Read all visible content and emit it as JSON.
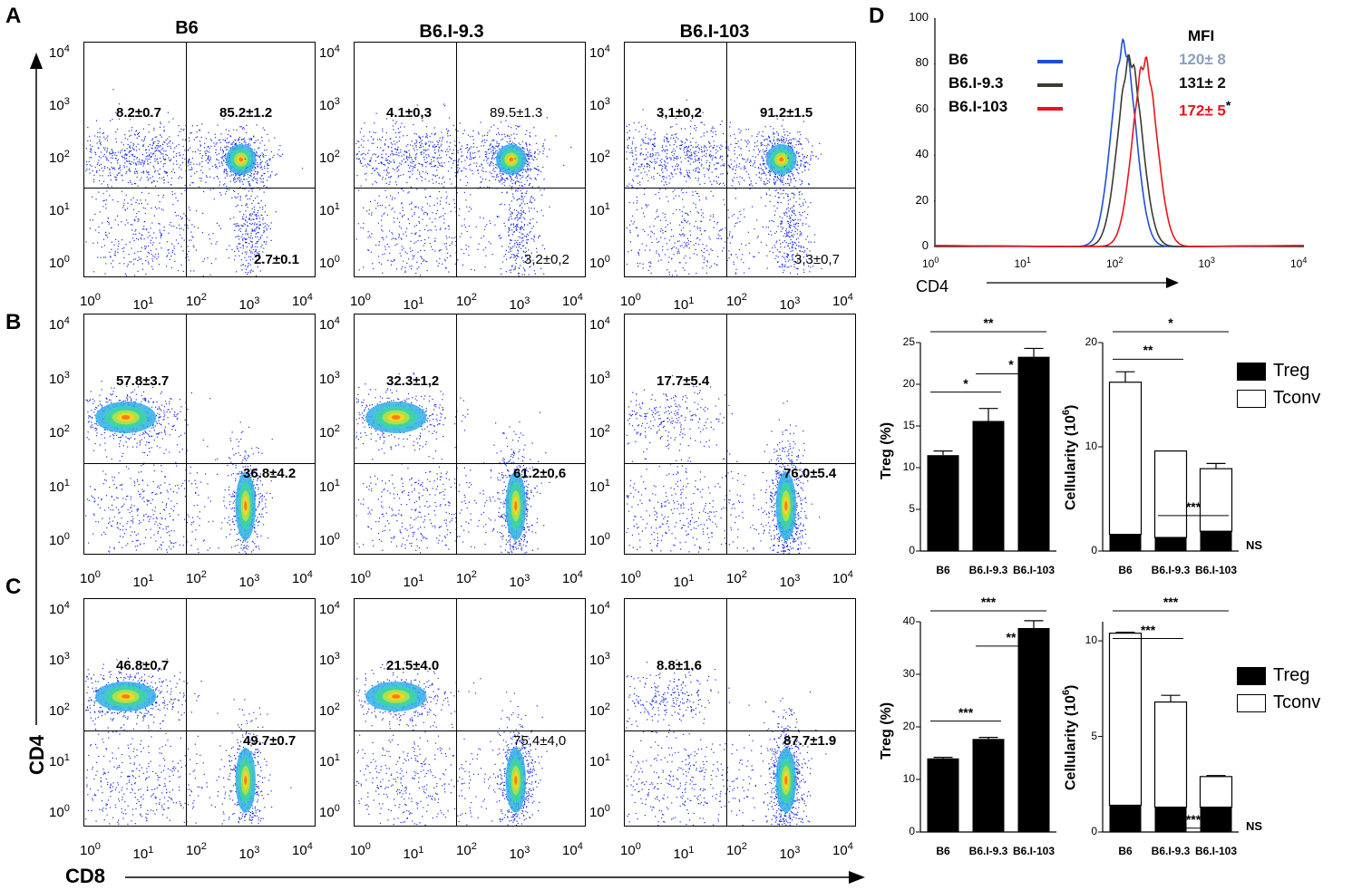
{
  "panels": {
    "A": "A",
    "B": "B",
    "C": "C",
    "D": "D"
  },
  "columns": [
    "B6",
    "B6.I-9.3",
    "B6.I-103"
  ],
  "axes": {
    "x": "CD8",
    "y": "CD4",
    "hist_x": "CD4"
  },
  "ticks": {
    "e0": "0",
    "e1": "1",
    "e2": "2",
    "e3": "3",
    "e4": "4",
    "base": "10"
  },
  "rows": {
    "A": [
      {
        "ul": "8.2±0.7",
        "ur": "85.2±1.2",
        "lr": "2.7±0.1"
      },
      {
        "ul": "4.1±0,3",
        "ur": "89.5±1.3",
        "lr": "3,2±0,2"
      },
      {
        "ul": "3,1±0,2",
        "ur": "91.2±1.5",
        "lr": "3,3±0,7"
      }
    ],
    "B": [
      {
        "ul": "57.8±3.7",
        "lr": "36.8±4.2"
      },
      {
        "ul": "32.3±1,2",
        "lr": "61.2±0.6"
      },
      {
        "ul": "17.7±5.4",
        "lr": "76.0±5.4"
      }
    ],
    "C": [
      {
        "ul": "46.8±0.7",
        "lr": "49.7±0.7"
      },
      {
        "ul": "21.5±4.0",
        "lr": "75,4±4,0"
      },
      {
        "ul": "8.8±1.6",
        "lr": "87.7±1.9"
      }
    ]
  },
  "chart_data": [
    {
      "type": "line",
      "title": "MFI",
      "xlabel": "CD4",
      "ylim": [
        0,
        100
      ],
      "yticks": [
        "0",
        "20",
        "40",
        "60",
        "80",
        "100"
      ],
      "series": [
        {
          "name": "B6",
          "mfi": "120± 8",
          "color": "#1f4fd8",
          "peak_log": 2.05,
          "peak": 88
        },
        {
          "name": "B6.I-9.3",
          "mfi": "131± 2",
          "color": "#3a3a30",
          "peak_log": 2.12,
          "peak": 82
        },
        {
          "name": "B6.I-103",
          "mfi": "172± 5",
          "mfi_mark": "*",
          "color": "#e8151b",
          "peak_log": 2.28,
          "peak": 81
        }
      ],
      "mfi_colors": [
        "#8a9fc0",
        "#111111",
        "#e8151b"
      ]
    },
    {
      "type": "bar",
      "ylabel": "Treg (%)",
      "ylim": [
        0,
        25
      ],
      "yticks": [
        "0",
        "5",
        "10",
        "15",
        "20",
        "25"
      ],
      "categories": [
        "B6",
        "B6.I-9.3",
        "B6.I-103"
      ],
      "values": [
        11.5,
        15.6,
        23.3
      ],
      "errors": [
        0.5,
        1.5,
        1.0
      ],
      "annotations": [
        {
          "from": 0,
          "to": 1,
          "label": "*"
        },
        {
          "from": 1,
          "to": 2,
          "label": "*"
        },
        {
          "from": 0,
          "to": 2,
          "label": "**"
        }
      ]
    },
    {
      "type": "bar",
      "ylabel": "Cellularity (10",
      "ylabel_sup": "6",
      "ylabel_end": ")",
      "ylim": [
        0,
        20
      ],
      "yticks": [
        "0",
        "10",
        "20"
      ],
      "categories": [
        "B6",
        "B6.I-9.3",
        "B6.I-103"
      ],
      "series": [
        {
          "name": "Treg",
          "values": [
            1.6,
            1.3,
            1.9
          ]
        },
        {
          "name": "Tconv",
          "values": [
            14.6,
            8.3,
            6.0
          ]
        }
      ],
      "errors": [
        1.0,
        0.0,
        0.5
      ],
      "annotations": [
        {
          "from": 0,
          "to": 1,
          "label": "**"
        },
        {
          "from": 1,
          "to": 2,
          "label": "***"
        },
        {
          "from": 0,
          "to": 2,
          "label": "*"
        }
      ],
      "note": "NS",
      "legend": [
        "Treg",
        "Tconv"
      ]
    },
    {
      "type": "bar",
      "ylabel": "Treg (%)",
      "ylim": [
        0,
        40
      ],
      "yticks": [
        "0",
        "10",
        "20",
        "30",
        "40"
      ],
      "categories": [
        "B6",
        "B6.I-9.3",
        "B6.I-103"
      ],
      "values": [
        14.0,
        17.7,
        38.8
      ],
      "errors": [
        0.2,
        0.3,
        1.4
      ],
      "annotations": [
        {
          "from": 0,
          "to": 1,
          "label": "***"
        },
        {
          "from": 1,
          "to": 2,
          "label": "**"
        },
        {
          "from": 0,
          "to": 2,
          "label": "***"
        }
      ]
    },
    {
      "type": "bar",
      "ylabel": "Cellularity (10",
      "ylabel_sup": "6",
      "ylabel_end": ")",
      "ylim": [
        0,
        11
      ],
      "yticks": [
        "0",
        "5",
        "10"
      ],
      "categories": [
        "B6",
        "B6.I-9.3",
        "B6.I-103"
      ],
      "series": [
        {
          "name": "Treg",
          "values": [
            1.4,
            1.3,
            1.3
          ]
        },
        {
          "name": "Tconv",
          "values": [
            9.0,
            5.5,
            1.6
          ]
        }
      ],
      "errors": [
        0.05,
        0.35,
        0.05
      ],
      "annotations": [
        {
          "from": 0,
          "to": 1,
          "label": "***"
        },
        {
          "from": 1,
          "to": 2,
          "label": "***"
        },
        {
          "from": 0,
          "to": 2,
          "label": "***"
        }
      ],
      "note": "NS",
      "legend": [
        "Treg",
        "Tconv"
      ]
    }
  ]
}
